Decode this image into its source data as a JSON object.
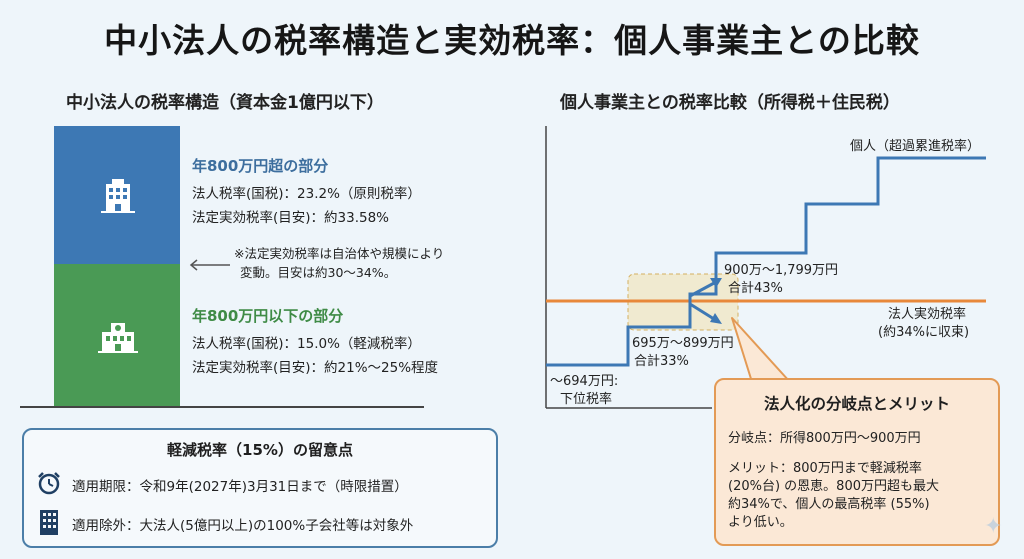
{
  "title": "中小法人の税率構造と実効税率：個人事業主との比較",
  "left": {
    "subtitle": "中小法人の税率構造（資本金1億円以下）",
    "upper": {
      "heading": "年800万円超の部分",
      "line1": "法人税率(国税)：23.2%（原則税率）",
      "line2": "法定実効税率(目安)：約33.58%",
      "icon": "office-building-icon"
    },
    "note": {
      "line1": "※法定実効税率は自治体や規模により",
      "line2": "変動。目安は約30〜34%。"
    },
    "lower": {
      "heading": "年800万円以下の部分",
      "line1": "法人税率(国税)：15.0%（軽減税率）",
      "line2": "法定実効税率(目安)：約21%〜25%程度",
      "icon": "small-office-icon"
    },
    "caution": {
      "title": "軽減税率（15%）の留意点",
      "row1": "適用期限：令和9年(2027年)3月31日まで（時限措置）",
      "row2": "適用除外：大法人(5億円以上)の100%子会社等は対象外",
      "icon1": "alarm-clock-icon",
      "icon2": "building-icon"
    }
  },
  "right": {
    "subtitle": "個人事業主との税率比較（所得税＋住民税）",
    "individual_label": "個人（超過累進税率）",
    "corporate_label_1": "法人実効税率",
    "corporate_label_2": "(約34%に収束)",
    "step1_1": "〜694万円:",
    "step1_2": "下位税率",
    "step2_1": "695万〜899万円",
    "step2_2": "合計33%",
    "step3_1": "900万〜1,799万円",
    "step3_2": "合計43%",
    "merit": {
      "title": "法人化の分岐点とメリット",
      "branch": "分岐点：所得800万円〜900万円",
      "m1": "メリット：800万円まで軽減税率",
      "m2": "(20%台) の恩恵。800万円超も最大",
      "m3": "約34%で、個人の最高税率 (55%)",
      "m4": "より低い。"
    }
  },
  "colors": {
    "blue": "#3d78b4",
    "green": "#4a9a55",
    "step_line": "#3d78b4",
    "corporate_line": "#e8883a",
    "merit_bg": "#fbe8d6"
  }
}
